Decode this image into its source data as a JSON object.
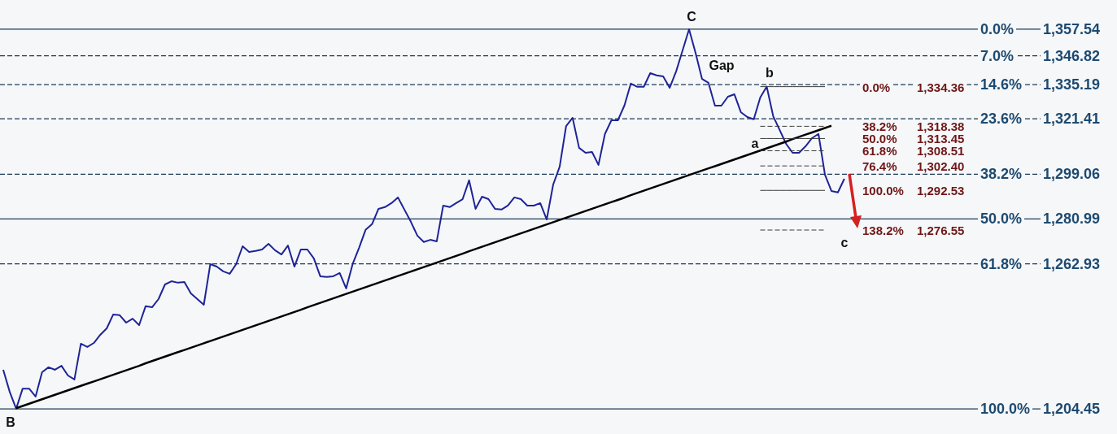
{
  "chart_data": {
    "type": "line",
    "categories": [
      null,
      null,
      null,
      null,
      null,
      null,
      null,
      null,
      null,
      null,
      null,
      null,
      null,
      null,
      null,
      null,
      null,
      null,
      null,
      null,
      null,
      null,
      null,
      null,
      null,
      null,
      null,
      null,
      null,
      null,
      null,
      null,
      null,
      null,
      null,
      null,
      null,
      null,
      null,
      null,
      null,
      null,
      null,
      null,
      null,
      null,
      null,
      null,
      null,
      null,
      null,
      null,
      null,
      null,
      null,
      null,
      null,
      null,
      null,
      null,
      null,
      null,
      null,
      null,
      null,
      null,
      null,
      null,
      null,
      null,
      null,
      null,
      null,
      null,
      null,
      null,
      null,
      null,
      null,
      null,
      null,
      null,
      null,
      null,
      null,
      null,
      null,
      null,
      null,
      null,
      null,
      null,
      null,
      null,
      null,
      null,
      null,
      null,
      null,
      null,
      null,
      null,
      null,
      null,
      null,
      null,
      null,
      null,
      null,
      null,
      null,
      null,
      null,
      null,
      null,
      null,
      null,
      null,
      null,
      null,
      null,
      null,
      null,
      null,
      null,
      null,
      null,
      null,
      null,
      null,
      null,
      null,
      null,
      null,
      null,
      null,
      null,
      null,
      null,
      null,
      null,
      null,
      null,
      null,
      null,
      null,
      null,
      null,
      null,
      null,
      null,
      null,
      null,
      null,
      null,
      null,
      null,
      null,
      null,
      null,
      null,
      null,
      null,
      null,
      null,
      null,
      null,
      null,
      null,
      null
    ],
    "series": [
      {
        "color": "#1e2496",
        "values": [
          1220.2,
          1211.3,
          1204.5,
          1212.6,
          1212.6,
          1209.4,
          1219.2,
          1221.2,
          1220.2,
          1221.8,
          1217.9,
          1216.3,
          1230.7,
          1229.4,
          1231.0,
          1234.3,
          1236.9,
          1242.5,
          1242.2,
          1239.2,
          1240.8,
          1238.2,
          1245.8,
          1245.4,
          1248.7,
          1254.6,
          1255.9,
          1255.3,
          1255.6,
          1251.0,
          1248.7,
          1246.4,
          1262.8,
          1261.8,
          1259.9,
          1258.9,
          1262.8,
          1270.0,
          1267.7,
          1268.1,
          1268.7,
          1271.0,
          1268.4,
          1266.7,
          1270.3,
          1261.8,
          1268.7,
          1268.7,
          1265.1,
          1257.9,
          1257.6,
          1257.9,
          1259.2,
          1253.0,
          1262.8,
          1269.4,
          1276.6,
          1278.9,
          1285.1,
          1285.8,
          1287.4,
          1289.7,
          1284.8,
          1279.9,
          1274.3,
          1271.7,
          1272.6,
          1272.0,
          1286.4,
          1285.8,
          1287.4,
          1289.0,
          1296.6,
          1285.1,
          1290.0,
          1289.0,
          1285.1,
          1284.8,
          1286.4,
          1289.7,
          1289.0,
          1286.4,
          1286.4,
          1287.4,
          1280.8,
          1294.9,
          1302.1,
          1318.5,
          1321.8,
          1309.7,
          1307.7,
          1308.0,
          1302.8,
          1315.3,
          1320.8,
          1320.8,
          1326.7,
          1335.6,
          1334.3,
          1334.3,
          1339.8,
          1338.9,
          1338.5,
          1333.9,
          1340.5,
          1349.0,
          1357.5,
          1348.0,
          1337.5,
          1335.9,
          1326.7,
          1326.7,
          1330.3,
          1331.3,
          1324.1,
          1322.1,
          1321.2,
          1330.0,
          1334.4,
          1322.5,
          1316.9,
          1311.3,
          1307.7,
          1307.7,
          1310.3,
          1313.6,
          1315.3,
          1298.9,
          1292.3,
          1291.7,
          1297.2,
          null,
          null,
          null,
          null,
          null,
          null,
          null,
          null,
          null,
          null,
          null,
          null,
          null,
          null,
          null,
          null,
          null,
          null,
          null,
          null,
          null,
          null,
          null,
          null,
          null,
          null,
          null,
          null,
          null,
          null,
          null,
          null,
          null,
          null,
          null,
          null,
          null,
          null,
          null
        ]
      },
      {
        "color": "#000000",
        "values": [
          null,
          null,
          1204.7,
          1205.6,
          1206.5,
          1207.4,
          1208.3,
          1209.2,
          1210.1,
          1211.0,
          1211.9,
          1212.8,
          1213.7,
          1214.6,
          1215.5,
          1216.4,
          1217.3,
          1218.2,
          1219.1,
          1220.0,
          1220.9,
          1221.8,
          1222.8,
          1223.7,
          1224.6,
          1225.5,
          1226.4,
          1227.3,
          1228.2,
          1229.1,
          1230.0,
          1230.9,
          1231.8,
          1232.7,
          1233.6,
          1234.5,
          1235.4,
          1236.3,
          1237.2,
          1238.1,
          1239.0,
          1239.9,
          1240.8,
          1241.7,
          1242.6,
          1243.5,
          1244.4,
          1245.4,
          1246.3,
          1247.2,
          1248.1,
          1249.0,
          1249.9,
          1250.8,
          1251.7,
          1252.6,
          1253.5,
          1254.4,
          1255.3,
          1256.2,
          1257.1,
          1258.0,
          1258.9,
          1259.8,
          1260.7,
          1261.6,
          1262.5,
          1263.4,
          1264.3,
          1265.2,
          1266.1,
          1267.0,
          1268.0,
          1268.9,
          1269.8,
          1270.7,
          1271.6,
          1272.5,
          1273.4,
          1274.3,
          1275.2,
          1276.1,
          1277.0,
          1277.9,
          1278.8,
          1279.7,
          1280.6,
          1281.5,
          1282.4,
          1283.3,
          1284.2,
          1285.1,
          1286.0,
          1286.9,
          1287.8,
          1288.7,
          1289.6,
          1290.6,
          1291.5,
          1292.4,
          1293.3,
          1294.2,
          1295.1,
          1296.0,
          1296.9,
          1297.8,
          1298.7,
          1299.6,
          1300.5,
          1301.4,
          1302.3,
          1303.2,
          1304.1,
          1305.0,
          1305.9,
          1306.8,
          1307.7,
          1308.6,
          1309.5,
          1310.4,
          1311.3,
          1312.2,
          1313.2,
          1314.1,
          1315.0,
          1315.9,
          1316.8,
          1317.7,
          1318.6,
          null,
          null,
          null,
          null,
          null,
          null,
          null,
          null,
          null,
          null,
          null,
          null,
          null,
          null,
          null,
          null,
          null,
          null,
          null,
          null,
          null,
          null,
          null,
          null,
          null,
          null,
          null,
          null,
          null,
          null,
          null,
          null,
          null,
          null,
          null,
          null,
          null,
          null,
          null,
          null,
          null
        ]
      },
      {
        "name": "0.0%",
        "color": "#3a3a3a",
        "line_style": "solid",
        "values": [
          null,
          null,
          null,
          null,
          null,
          null,
          null,
          null,
          null,
          null,
          null,
          null,
          null,
          null,
          null,
          null,
          null,
          null,
          null,
          null,
          null,
          null,
          null,
          null,
          null,
          null,
          null,
          null,
          null,
          null,
          null,
          null,
          null,
          null,
          null,
          null,
          null,
          null,
          null,
          null,
          null,
          null,
          null,
          null,
          null,
          null,
          null,
          null,
          null,
          null,
          null,
          null,
          null,
          null,
          null,
          null,
          null,
          null,
          null,
          null,
          null,
          null,
          null,
          null,
          null,
          null,
          null,
          null,
          null,
          null,
          null,
          null,
          null,
          null,
          null,
          null,
          null,
          null,
          null,
          null,
          null,
          null,
          null,
          null,
          null,
          null,
          null,
          null,
          null,
          null,
          null,
          null,
          null,
          null,
          null,
          null,
          null,
          null,
          null,
          null,
          null,
          null,
          null,
          null,
          null,
          null,
          null,
          null,
          null,
          null,
          null,
          null,
          null,
          null,
          null,
          null,
          null,
          1334.36,
          1334.36,
          1334.36,
          1334.36,
          1334.36,
          1334.36,
          1334.36,
          1334.36,
          1334.36,
          1334.36,
          1334.36,
          null,
          null,
          null,
          null,
          null,
          null,
          null,
          null,
          null,
          null,
          null,
          null,
          null,
          null,
          null,
          null,
          null,
          null,
          null,
          null,
          null,
          null,
          null,
          null,
          null,
          null,
          null,
          null,
          null,
          null,
          null,
          null,
          null,
          null,
          null,
          null,
          null,
          null,
          null,
          null,
          null,
          null
        ]
      },
      {
        "name": "38.2%",
        "color": "#3a3a3a",
        "line_style": "dashed",
        "values": [
          null,
          null,
          null,
          null,
          null,
          null,
          null,
          null,
          null,
          null,
          null,
          null,
          null,
          null,
          null,
          null,
          null,
          null,
          null,
          null,
          null,
          null,
          null,
          null,
          null,
          null,
          null,
          null,
          null,
          null,
          null,
          null,
          null,
          null,
          null,
          null,
          null,
          null,
          null,
          null,
          null,
          null,
          null,
          null,
          null,
          null,
          null,
          null,
          null,
          null,
          null,
          null,
          null,
          null,
          null,
          null,
          null,
          null,
          null,
          null,
          null,
          null,
          null,
          null,
          null,
          null,
          null,
          null,
          null,
          null,
          null,
          null,
          null,
          null,
          null,
          null,
          null,
          null,
          null,
          null,
          null,
          null,
          null,
          null,
          null,
          null,
          null,
          null,
          null,
          null,
          null,
          null,
          null,
          null,
          null,
          null,
          null,
          null,
          null,
          null,
          null,
          null,
          null,
          null,
          null,
          null,
          null,
          null,
          null,
          null,
          null,
          null,
          null,
          null,
          null,
          null,
          null,
          1318.38,
          1318.38,
          1318.38,
          1318.38,
          1318.38,
          1318.38,
          1318.38,
          1318.38,
          1318.38,
          1318.38,
          1318.38,
          null,
          null,
          null,
          null,
          null,
          null,
          null,
          null,
          null,
          null,
          null,
          null,
          null,
          null,
          null,
          null,
          null,
          null,
          null,
          null,
          null,
          null,
          null,
          null,
          null,
          null,
          null,
          null,
          null,
          null,
          null,
          null,
          null,
          null,
          null,
          null,
          null,
          null,
          null,
          null,
          null,
          null
        ]
      },
      {
        "name": "50.0%",
        "color": "#3a3a3a",
        "line_style": "solid",
        "values": [
          null,
          null,
          null,
          null,
          null,
          null,
          null,
          null,
          null,
          null,
          null,
          null,
          null,
          null,
          null,
          null,
          null,
          null,
          null,
          null,
          null,
          null,
          null,
          null,
          null,
          null,
          null,
          null,
          null,
          null,
          null,
          null,
          null,
          null,
          null,
          null,
          null,
          null,
          null,
          null,
          null,
          null,
          null,
          null,
          null,
          null,
          null,
          null,
          null,
          null,
          null,
          null,
          null,
          null,
          null,
          null,
          null,
          null,
          null,
          null,
          null,
          null,
          null,
          null,
          null,
          null,
          null,
          null,
          null,
          null,
          null,
          null,
          null,
          null,
          null,
          null,
          null,
          null,
          null,
          null,
          null,
          null,
          null,
          null,
          null,
          null,
          null,
          null,
          null,
          null,
          null,
          null,
          null,
          null,
          null,
          null,
          null,
          null,
          null,
          null,
          null,
          null,
          null,
          null,
          null,
          null,
          null,
          null,
          null,
          null,
          null,
          null,
          null,
          null,
          null,
          null,
          null,
          1313.45,
          1313.45,
          1313.45,
          1313.45,
          1313.45,
          1313.45,
          1313.45,
          1313.45,
          1313.45,
          1313.45,
          1313.45,
          null,
          null,
          null,
          null,
          null,
          null,
          null,
          null,
          null,
          null,
          null,
          null,
          null,
          null,
          null,
          null,
          null,
          null,
          null,
          null,
          null,
          null,
          null,
          null,
          null,
          null,
          null,
          null,
          null,
          null,
          null,
          null,
          null,
          null,
          null,
          null,
          null,
          null,
          null,
          null,
          null,
          null
        ]
      },
      {
        "name": "61.8%",
        "color": "#3a3a3a",
        "line_style": "dashed",
        "values": [
          null,
          null,
          null,
          null,
          null,
          null,
          null,
          null,
          null,
          null,
          null,
          null,
          null,
          null,
          null,
          null,
          null,
          null,
          null,
          null,
          null,
          null,
          null,
          null,
          null,
          null,
          null,
          null,
          null,
          null,
          null,
          null,
          null,
          null,
          null,
          null,
          null,
          null,
          null,
          null,
          null,
          null,
          null,
          null,
          null,
          null,
          null,
          null,
          null,
          null,
          null,
          null,
          null,
          null,
          null,
          null,
          null,
          null,
          null,
          null,
          null,
          null,
          null,
          null,
          null,
          null,
          null,
          null,
          null,
          null,
          null,
          null,
          null,
          null,
          null,
          null,
          null,
          null,
          null,
          null,
          null,
          null,
          null,
          null,
          null,
          null,
          null,
          null,
          null,
          null,
          null,
          null,
          null,
          null,
          null,
          null,
          null,
          null,
          null,
          null,
          null,
          null,
          null,
          null,
          null,
          null,
          null,
          null,
          null,
          null,
          null,
          null,
          null,
          null,
          null,
          null,
          null,
          1308.51,
          1308.51,
          1308.51,
          1308.51,
          1308.51,
          1308.51,
          1308.51,
          1308.51,
          1308.51,
          1308.51,
          1308.51,
          null,
          null,
          null,
          null,
          null,
          null,
          null,
          null,
          null,
          null,
          null,
          null,
          null,
          null,
          null,
          null,
          null,
          null,
          null,
          null,
          null,
          null,
          null,
          null,
          null,
          null,
          null,
          null,
          null,
          null,
          null,
          null,
          null,
          null,
          null,
          null,
          null,
          null,
          null,
          null,
          null,
          null
        ]
      },
      {
        "name": "76.4%",
        "color": "#3a3a3a",
        "line_style": "dashed",
        "values": [
          null,
          null,
          null,
          null,
          null,
          null,
          null,
          null,
          null,
          null,
          null,
          null,
          null,
          null,
          null,
          null,
          null,
          null,
          null,
          null,
          null,
          null,
          null,
          null,
          null,
          null,
          null,
          null,
          null,
          null,
          null,
          null,
          null,
          null,
          null,
          null,
          null,
          null,
          null,
          null,
          null,
          null,
          null,
          null,
          null,
          null,
          null,
          null,
          null,
          null,
          null,
          null,
          null,
          null,
          null,
          null,
          null,
          null,
          null,
          null,
          null,
          null,
          null,
          null,
          null,
          null,
          null,
          null,
          null,
          null,
          null,
          null,
          null,
          null,
          null,
          null,
          null,
          null,
          null,
          null,
          null,
          null,
          null,
          null,
          null,
          null,
          null,
          null,
          null,
          null,
          null,
          null,
          null,
          null,
          null,
          null,
          null,
          null,
          null,
          null,
          null,
          null,
          null,
          null,
          null,
          null,
          null,
          null,
          null,
          null,
          null,
          null,
          null,
          null,
          null,
          null,
          null,
          1302.4,
          1302.4,
          1302.4,
          1302.4,
          1302.4,
          1302.4,
          1302.4,
          1302.4,
          1302.4,
          1302.4,
          1302.4,
          null,
          null,
          null,
          null,
          null,
          null,
          null,
          null,
          null,
          null,
          null,
          null,
          null,
          null,
          null,
          null,
          null,
          null,
          null,
          null,
          null,
          null,
          null,
          null,
          null,
          null,
          null,
          null,
          null,
          null,
          null,
          null,
          null,
          null,
          null,
          null,
          null,
          null,
          null,
          null,
          null,
          null
        ]
      },
      {
        "name": "100.0%",
        "color": "#3a3a3a",
        "line_style": "solid",
        "values": [
          null,
          null,
          null,
          null,
          null,
          null,
          null,
          null,
          null,
          null,
          null,
          null,
          null,
          null,
          null,
          null,
          null,
          null,
          null,
          null,
          null,
          null,
          null,
          null,
          null,
          null,
          null,
          null,
          null,
          null,
          null,
          null,
          null,
          null,
          null,
          null,
          null,
          null,
          null,
          null,
          null,
          null,
          null,
          null,
          null,
          null,
          null,
          null,
          null,
          null,
          null,
          null,
          null,
          null,
          null,
          null,
          null,
          null,
          null,
          null,
          null,
          null,
          null,
          null,
          null,
          null,
          null,
          null,
          null,
          null,
          null,
          null,
          null,
          null,
          null,
          null,
          null,
          null,
          null,
          null,
          null,
          null,
          null,
          null,
          null,
          null,
          null,
          null,
          null,
          null,
          null,
          null,
          null,
          null,
          null,
          null,
          null,
          null,
          null,
          null,
          null,
          null,
          null,
          null,
          null,
          null,
          null,
          null,
          null,
          null,
          null,
          null,
          null,
          null,
          null,
          null,
          null,
          1292.53,
          1292.53,
          1292.53,
          1292.53,
          1292.53,
          1292.53,
          1292.53,
          1292.53,
          1292.53,
          1292.53,
          1292.53,
          null,
          null,
          null,
          null,
          null,
          null,
          null,
          null,
          null,
          null,
          null,
          null,
          null,
          null,
          null,
          null,
          null,
          null,
          null,
          null,
          null,
          null,
          null,
          null,
          null,
          null,
          null,
          null,
          null,
          null,
          null,
          null,
          null,
          null,
          null,
          null,
          null,
          null,
          null,
          null,
          null,
          null
        ]
      },
      {
        "name": "138.2%",
        "color": "#3a3a3a",
        "line_style": "dashed",
        "values": [
          null,
          null,
          null,
          null,
          null,
          null,
          null,
          null,
          null,
          null,
          null,
          null,
          null,
          null,
          null,
          null,
          null,
          null,
          null,
          null,
          null,
          null,
          null,
          null,
          null,
          null,
          null,
          null,
          null,
          null,
          null,
          null,
          null,
          null,
          null,
          null,
          null,
          null,
          null,
          null,
          null,
          null,
          null,
          null,
          null,
          null,
          null,
          null,
          null,
          null,
          null,
          null,
          null,
          null,
          null,
          null,
          null,
          null,
          null,
          null,
          null,
          null,
          null,
          null,
          null,
          null,
          null,
          null,
          null,
          null,
          null,
          null,
          null,
          null,
          null,
          null,
          null,
          null,
          null,
          null,
          null,
          null,
          null,
          null,
          null,
          null,
          null,
          null,
          null,
          null,
          null,
          null,
          null,
          null,
          null,
          null,
          null,
          null,
          null,
          null,
          null,
          null,
          null,
          null,
          null,
          null,
          null,
          null,
          null,
          null,
          null,
          null,
          null,
          null,
          null,
          null,
          null,
          1276.55,
          1276.55,
          1276.55,
          1276.55,
          1276.55,
          1276.55,
          1276.55,
          1276.55,
          1276.55,
          1276.55,
          1276.55,
          null,
          null,
          null,
          null,
          null,
          null,
          null,
          null,
          null,
          null,
          null,
          null,
          null,
          null,
          null,
          null,
          null,
          null,
          null,
          null,
          null,
          null,
          null,
          null,
          null,
          null,
          null,
          null,
          null,
          null,
          null,
          null,
          null,
          null,
          null,
          null,
          null,
          null,
          null,
          null,
          null,
          null
        ]
      }
    ],
    "ylim": [
      1194.3,
      1369.3
    ],
    "yticks": [
      {
        "value": 1357.54,
        "label": "1,357.54"
      },
      {
        "value": 1346.82,
        "label": "1,346.82"
      },
      {
        "value": 1335.19,
        "label": "1,335.19"
      },
      {
        "value": 1321.41,
        "label": "1,321.41"
      },
      {
        "value": 1299.06,
        "label": "1,299.06"
      },
      {
        "value": 1280.99,
        "label": "1,280.99"
      },
      {
        "value": 1262.93,
        "label": "1,262.93"
      },
      {
        "value": 1204.45,
        "label": "1,204.45"
      }
    ],
    "y2lim": [
      106.63,
      -7.68
    ],
    "y2ticks": [
      {
        "value": 0,
        "label": "0.0%"
      },
      {
        "value": 7,
        "label": "7.0%"
      },
      {
        "value": 14.6,
        "label": "14.6%"
      },
      {
        "value": 23.6,
        "label": "23.6%"
      },
      {
        "value": 38.2,
        "label": "38.2%"
      },
      {
        "value": 50,
        "label": "50.0%"
      },
      {
        "value": 61.8,
        "label": "61.8%"
      },
      {
        "value": 100,
        "label": "100.0%"
      }
    ],
    "y3lim": [
      1194.3,
      1369.3
    ],
    "y3ticks": [
      {
        "value": 1334.36,
        "label": "1,334.36"
      },
      {
        "value": 1318.38,
        "label": "1,318.38"
      },
      {
        "value": 1313.45,
        "label": "1,313.45"
      },
      {
        "value": 1308.51,
        "label": "1,308.51"
      },
      {
        "value": 1302.4,
        "label": "1,302.40"
      },
      {
        "value": 1292.53,
        "label": "1,292.53"
      },
      {
        "value": 1276.55,
        "label": "1,276.55"
      }
    ],
    "tick_labels": "y",
    "ref_lines": [
      {
        "axis": "y",
        "value": 1357.54,
        "color": "#1d3b57",
        "line_style": "solid"
      },
      {
        "axis": "y",
        "value": 1346.82,
        "color": "#1d3b57",
        "line_style": "dashed"
      },
      {
        "axis": "y",
        "value": 1335.19,
        "color": "#1d3b57",
        "line_style": "dashed"
      },
      {
        "axis": "y",
        "value": 1321.41,
        "color": "#1d3b57",
        "line_style": "dashed"
      },
      {
        "axis": "y",
        "value": 1299.06,
        "color": "#1d3b57",
        "line_style": "dashed"
      },
      {
        "axis": "y",
        "value": 1280.99,
        "color": "#1d3b57",
        "line_style": "solid"
      },
      {
        "axis": "y",
        "value": 1262.93,
        "color": "#1d3b57",
        "line_style": "dashed"
      },
      {
        "axis": "y",
        "value": 1204.45,
        "color": "#1d3b57",
        "line_style": "solid"
      }
    ],
    "annotations": [
      {
        "text": "C",
        "y": 1357.54
      },
      "Gap",
      {
        "text": "b",
        "y": 1334.36
      },
      "a",
      "c",
      {
        "text": "B",
        "y": 1204.45
      }
    ]
  }
}
